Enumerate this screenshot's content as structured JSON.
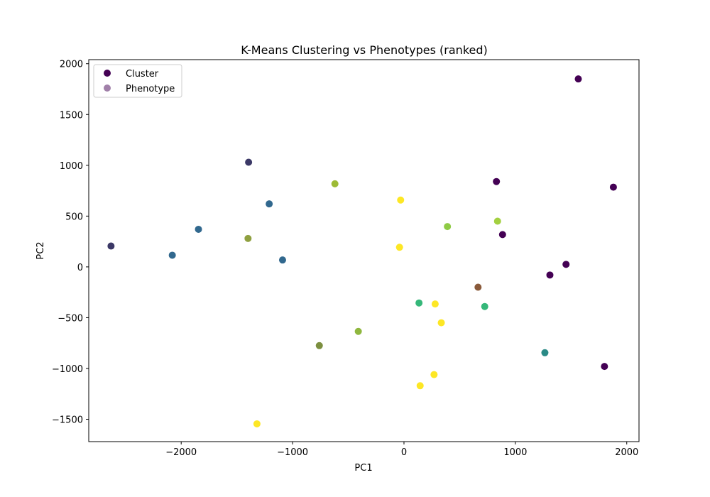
{
  "chart_data": {
    "type": "scatter",
    "title": "K-Means Clustering vs Phenotypes (ranked)",
    "xlabel": "PC1",
    "ylabel": "PC2",
    "xlim": [
      -2830,
      2110
    ],
    "ylim": [
      -1720,
      2040
    ],
    "xticks": [
      -2000,
      -1000,
      0,
      1000,
      2000
    ],
    "yticks": [
      -1500,
      -1000,
      -500,
      0,
      500,
      1000,
      1500,
      2000
    ],
    "grid": false,
    "legend_position": "top-left",
    "legend": [
      {
        "name": "Cluster",
        "color": "#440154",
        "opacity": 1.0
      },
      {
        "name": "Phenotype",
        "color": "#440154",
        "opacity": 0.5
      }
    ],
    "points": [
      {
        "x": 1565,
        "y": 1850,
        "color": "#440154"
      },
      {
        "x": 1880,
        "y": 785,
        "color": "#440154"
      },
      {
        "x": 830,
        "y": 840,
        "color": "#440154"
      },
      {
        "x": 885,
        "y": 318,
        "color": "#440154"
      },
      {
        "x": 1455,
        "y": 25,
        "color": "#440154"
      },
      {
        "x": 1310,
        "y": -80,
        "color": "#440154"
      },
      {
        "x": 1800,
        "y": -980,
        "color": "#440154"
      },
      {
        "x": -1395,
        "y": 1030,
        "color": "#3b3866"
      },
      {
        "x": -2630,
        "y": 205,
        "color": "#3b3866"
      },
      {
        "x": -1210,
        "y": 620,
        "color": "#31688e"
      },
      {
        "x": -1845,
        "y": 370,
        "color": "#31688e"
      },
      {
        "x": -2080,
        "y": 115,
        "color": "#31688e"
      },
      {
        "x": -1090,
        "y": 68,
        "color": "#31688e"
      },
      {
        "x": -620,
        "y": 818,
        "color": "#9dbb35"
      },
      {
        "x": -1400,
        "y": 280,
        "color": "#8fa040"
      },
      {
        "x": 390,
        "y": 397,
        "color": "#8fcb45"
      },
      {
        "x": 840,
        "y": 450,
        "color": "#a3d040"
      },
      {
        "x": -410,
        "y": -635,
        "color": "#8fb73e"
      },
      {
        "x": -760,
        "y": -775,
        "color": "#7c8f3f"
      },
      {
        "x": -30,
        "y": 658,
        "color": "#fde725"
      },
      {
        "x": -40,
        "y": 193,
        "color": "#fde725"
      },
      {
        "x": 280,
        "y": -365,
        "color": "#fde725"
      },
      {
        "x": 335,
        "y": -550,
        "color": "#fde725"
      },
      {
        "x": 270,
        "y": -1060,
        "color": "#fde725"
      },
      {
        "x": 145,
        "y": -1170,
        "color": "#fde725"
      },
      {
        "x": -1320,
        "y": -1545,
        "color": "#fde725"
      },
      {
        "x": 135,
        "y": -355,
        "color": "#35b779"
      },
      {
        "x": 725,
        "y": -390,
        "color": "#35b779"
      },
      {
        "x": 665,
        "y": -200,
        "color": "#8a5a3a"
      },
      {
        "x": 1265,
        "y": -845,
        "color": "#2a8a86"
      }
    ]
  }
}
